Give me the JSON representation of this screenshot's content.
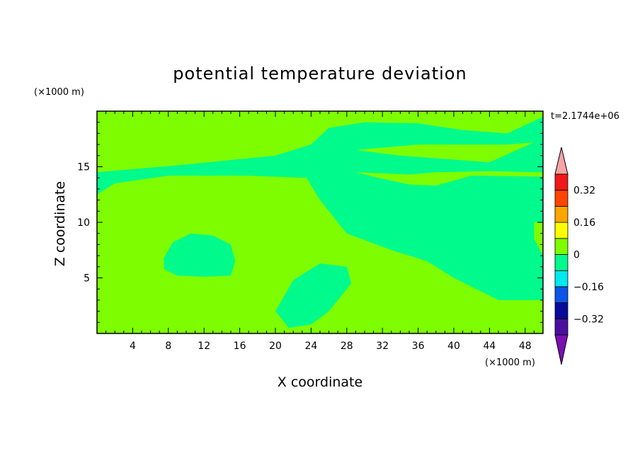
{
  "chart_data": {
    "type": "heatmap",
    "title": "potential temperature deviation",
    "xlabel": "X coordinate",
    "ylabel": "Z coordinate",
    "x_unit": "(×1000 m)",
    "y_unit": "(×1000 m)",
    "time_label": "t=2.1744e+06",
    "xlim": [
      0,
      50
    ],
    "ylim": [
      0,
      20
    ],
    "x_ticks": [
      4,
      8,
      12,
      16,
      20,
      24,
      28,
      32,
      36,
      40,
      44,
      48
    ],
    "y_ticks": [
      5,
      10,
      15
    ],
    "colorbar": {
      "levels": [
        -0.4,
        -0.32,
        -0.24,
        -0.16,
        -0.08,
        0,
        0.08,
        0.16,
        0.24,
        0.32,
        0.4
      ],
      "colors": [
        "#4b0fa0",
        "#0a0a9a",
        "#0c55e8",
        "#00e8f0",
        "#00fa8c",
        "#7efc00",
        "#ffff00",
        "#ffa500",
        "#ff4500",
        "#f01818"
      ],
      "under_color": "#7a10b0",
      "over_color": "#f4a4a4",
      "tick_labels": [
        "−0.32",
        "−0.16",
        "0",
        "0.16",
        "0.32"
      ],
      "tick_values": [
        -0.32,
        -0.16,
        0,
        0.16,
        0.32
      ]
    },
    "background_level": "-0.08 to 0",
    "regions": [
      {
        "level": "0 to 0.08",
        "color": "#7efc00",
        "points": [
          [
            0,
            0
          ],
          [
            50,
            0
          ],
          [
            50,
            3
          ],
          [
            45,
            3
          ],
          [
            40,
            5
          ],
          [
            37,
            6.5
          ],
          [
            33,
            7.5
          ],
          [
            28,
            9
          ],
          [
            25,
            12
          ],
          [
            23.5,
            14
          ],
          [
            17,
            14.2
          ],
          [
            8,
            14.2
          ],
          [
            2,
            13.5
          ],
          [
            0,
            12.5
          ]
        ]
      },
      {
        "level": "-0.08 to 0",
        "color": "#00fa8c",
        "points": [
          [
            7.5,
            6.8
          ],
          [
            8.5,
            8.2
          ],
          [
            10.5,
            9
          ],
          [
            13,
            8.8
          ],
          [
            15,
            8
          ],
          [
            15.5,
            6.5
          ],
          [
            15,
            5.2
          ],
          [
            12,
            5.1
          ],
          [
            9,
            5.2
          ],
          [
            7.5,
            5.8
          ]
        ]
      },
      {
        "level": "-0.08 to 0",
        "color": "#00fa8c",
        "points": [
          [
            20,
            2
          ],
          [
            22,
            4.8
          ],
          [
            25,
            6.3
          ],
          [
            28,
            6
          ],
          [
            28.5,
            4.5
          ],
          [
            26,
            2
          ],
          [
            24,
            0.8
          ],
          [
            21.5,
            0.5
          ]
        ]
      },
      {
        "level": "0 to 0.08",
        "color": "#7efc00",
        "points": [
          [
            0,
            14.5
          ],
          [
            10,
            15.2
          ],
          [
            20,
            16
          ],
          [
            24,
            17
          ],
          [
            26,
            18.5
          ],
          [
            30,
            19
          ],
          [
            36,
            18.9
          ],
          [
            41,
            18.3
          ],
          [
            46,
            18
          ],
          [
            50,
            19.5
          ],
          [
            50,
            20
          ],
          [
            0,
            20
          ]
        ]
      },
      {
        "level": "0 to 0.08",
        "color": "#7efc00",
        "points": [
          [
            8,
            16.5
          ],
          [
            12,
            17
          ],
          [
            18,
            17.2
          ],
          [
            22,
            16.6
          ],
          [
            16,
            16.2
          ]
        ]
      },
      {
        "level": "0 to 0.08",
        "color": "#7efc00",
        "points": [
          [
            29,
            16.5
          ],
          [
            36,
            17
          ],
          [
            46,
            17
          ],
          [
            49,
            17.2
          ],
          [
            44,
            15.4
          ],
          [
            34,
            16
          ]
        ]
      },
      {
        "level": "0 to 0.08",
        "color": "#7efc00",
        "points": [
          [
            29,
            14.5
          ],
          [
            35,
            14.3
          ],
          [
            38,
            14.5
          ],
          [
            44,
            14.6
          ],
          [
            50,
            14.5
          ],
          [
            50,
            14.1
          ],
          [
            42,
            14.2
          ],
          [
            38,
            13.3
          ],
          [
            35,
            13.4
          ],
          [
            31,
            14.1
          ]
        ]
      },
      {
        "level": "0 to 0.08",
        "color": "#7efc00",
        "points": [
          [
            49,
            10
          ],
          [
            50,
            10
          ],
          [
            50,
            7
          ],
          [
            49,
            8.5
          ]
        ]
      }
    ]
  }
}
